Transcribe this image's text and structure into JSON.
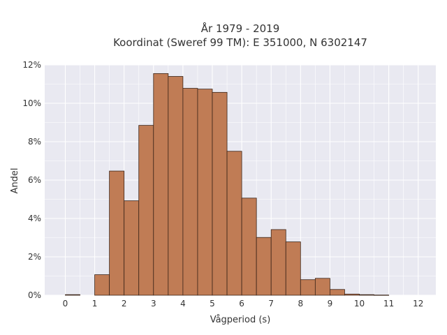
{
  "chart_data": {
    "type": "bar",
    "title_line1": "År 1979 - 2019",
    "title_line2": "Koordinat (Sweref 99 TM): E 351000, N 6302147",
    "xlabel": "Vågperiod (s)",
    "ylabel": "Andel",
    "xlim": [
      -0.7,
      12.6
    ],
    "ylim": [
      0,
      12
    ],
    "x_ticks": [
      "0",
      "1",
      "2",
      "3",
      "4",
      "5",
      "6",
      "7",
      "8",
      "9",
      "10",
      "11",
      "12"
    ],
    "y_ticks": [
      "0%",
      "2%",
      "4%",
      "6%",
      "8%",
      "10%",
      "12%"
    ],
    "bin_width": 0.5,
    "bars": [
      {
        "start": 0.0,
        "value": 0.03
      },
      {
        "start": 1.0,
        "value": 1.07
      },
      {
        "start": 1.5,
        "value": 6.47
      },
      {
        "start": 2.0,
        "value": 4.92
      },
      {
        "start": 2.5,
        "value": 8.85
      },
      {
        "start": 3.0,
        "value": 11.55
      },
      {
        "start": 3.5,
        "value": 11.4
      },
      {
        "start": 4.0,
        "value": 10.78
      },
      {
        "start": 4.5,
        "value": 10.74
      },
      {
        "start": 5.0,
        "value": 10.57
      },
      {
        "start": 5.5,
        "value": 7.5
      },
      {
        "start": 6.0,
        "value": 5.06
      },
      {
        "start": 6.5,
        "value": 3.01
      },
      {
        "start": 7.0,
        "value": 3.42
      },
      {
        "start": 7.5,
        "value": 2.78
      },
      {
        "start": 8.0,
        "value": 0.81
      },
      {
        "start": 8.5,
        "value": 0.88
      },
      {
        "start": 9.0,
        "value": 0.3
      },
      {
        "start": 9.5,
        "value": 0.06
      },
      {
        "start": 10.0,
        "value": 0.03
      },
      {
        "start": 10.5,
        "value": 0.01
      }
    ],
    "grid": true,
    "colors": {
      "bar_fill": "#c07c55",
      "bar_stroke": "#3a2418",
      "plot_bg": "#e9e9f1",
      "grid": "#ffffff"
    }
  }
}
